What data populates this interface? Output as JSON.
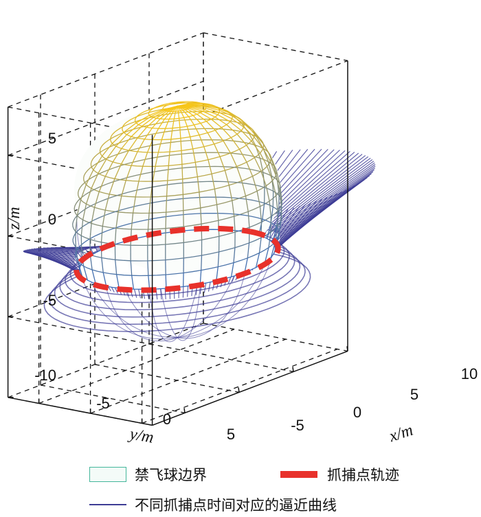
{
  "chart_data": {
    "type": "3d-surface",
    "title": "",
    "xlabel": "x/m",
    "ylabel": "y/m",
    "zlabel": "z/m",
    "x_ticks": [
      "-5",
      "0",
      "5",
      "10"
    ],
    "y_ticks": [
      "-5",
      "0",
      "5"
    ],
    "z_ticks": [
      "5",
      "0",
      "-5",
      "-10"
    ],
    "xlim": [
      -8,
      10
    ],
    "ylim": [
      -8,
      6
    ],
    "zlim": [
      -10,
      8
    ],
    "grid": true,
    "grid_style": "dashed",
    "legend_position": "bottom",
    "sphere_radius": 7,
    "capture_circle_z": -2.5,
    "colors": {
      "sphere_top": "#f7c61a",
      "sphere_bottom": "#3a6bb8",
      "capture_path": "#e8312b",
      "approach_curves": "#3d3c95"
    },
    "legend": [
      {
        "label": "禁飞球边界",
        "style": "box",
        "color": "#43b69a"
      },
      {
        "label": "抓捕点轨迹",
        "style": "thick-dash",
        "color": "#e8312b"
      },
      {
        "label": "不同抓捕点时间对应的逼近曲线",
        "style": "line",
        "color": "#3d3c95"
      }
    ]
  }
}
